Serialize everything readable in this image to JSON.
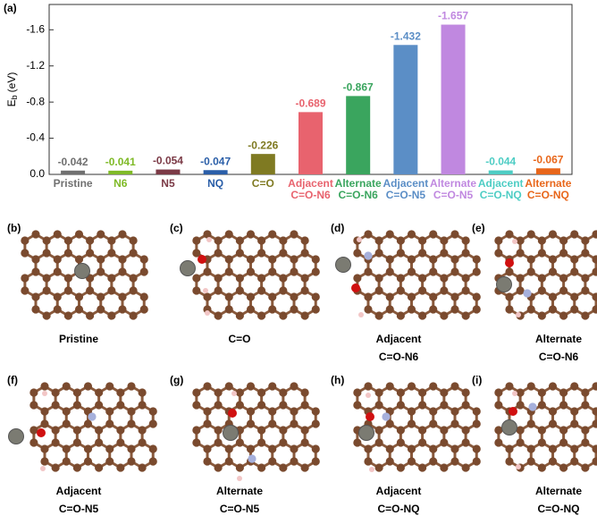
{
  "panel_label": "(a)",
  "chart_data": {
    "type": "bar",
    "ylabel": {
      "main": "E",
      "sub": "b",
      "unit": "(eV)"
    },
    "categories": [
      [
        "Pristine"
      ],
      [
        "N6"
      ],
      [
        "N5"
      ],
      [
        "NQ"
      ],
      [
        "C=O"
      ],
      [
        "Adjacent",
        "C=O-N6"
      ],
      [
        "Alternate",
        "C=O-N6"
      ],
      [
        "Adjacent",
        "C=O-N5"
      ],
      [
        "Alternate",
        "C=O-N5"
      ],
      [
        "Adjacent",
        "C=O-NQ"
      ],
      [
        "Alternate",
        "C=O-NQ"
      ]
    ],
    "values": [
      -0.042,
      -0.041,
      -0.054,
      -0.047,
      -0.226,
      -0.689,
      -0.867,
      -1.432,
      -1.657,
      -0.044,
      -0.067
    ],
    "colors": [
      "#707070",
      "#7fba27",
      "#7b3a46",
      "#2a5ea8",
      "#7f7a22",
      "#e8636e",
      "#3aa55e",
      "#5b8ec6",
      "#c088e0",
      "#4ecdc4",
      "#e8661a"
    ],
    "ylim": [
      0,
      -1.88
    ],
    "yticks": [
      {
        "value": 0,
        "label": "0.0"
      },
      -0.4,
      -0.8,
      -1.2,
      -1.6
    ]
  },
  "structures": [
    {
      "label": "(b)",
      "caption": [
        "Pristine"
      ]
    },
    {
      "label": "(c)",
      "caption": [
        "C=O"
      ]
    },
    {
      "label": "(d)",
      "caption": [
        "Adjacent",
        "C=O-N6"
      ]
    },
    {
      "label": "(e)",
      "caption": [
        "Alternate",
        "C=O-N6"
      ]
    },
    {
      "label": "(f)",
      "caption": [
        "Adjacent",
        "C=O-N5"
      ]
    },
    {
      "label": "(g)",
      "caption": [
        "Alternate",
        "C=O-N5"
      ]
    },
    {
      "label": "(h)",
      "caption": [
        "Adjacent",
        "C=O-NQ"
      ]
    },
    {
      "label": "(i)",
      "caption": [
        "Alternate",
        "C=O-NQ"
      ]
    }
  ]
}
